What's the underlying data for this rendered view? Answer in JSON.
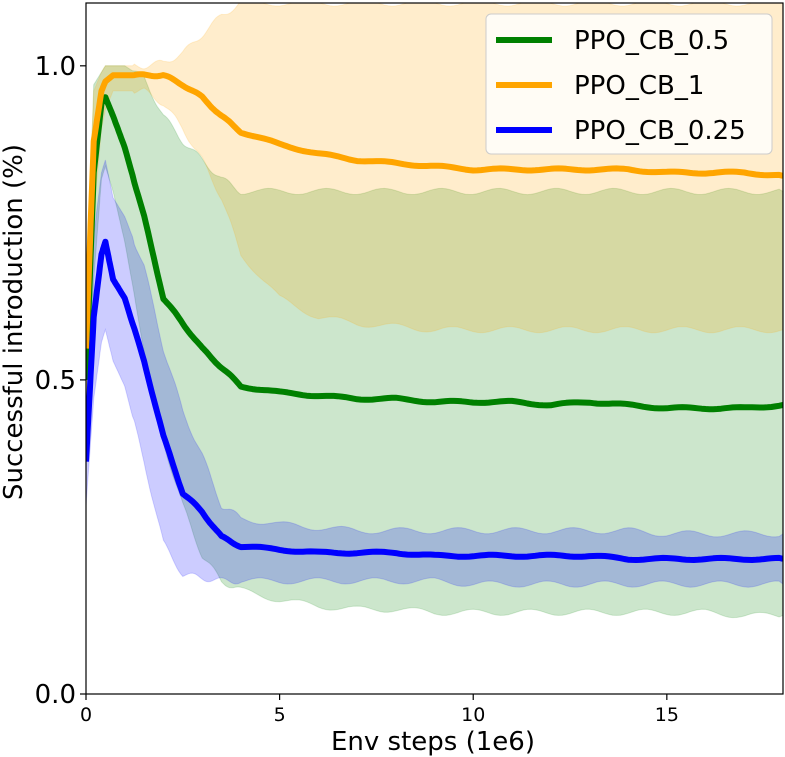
{
  "chart_data": {
    "type": "line",
    "title": "",
    "xlabel": "Env steps (1e6)",
    "ylabel": "Successful introduction (%)",
    "xlim": [
      0,
      18
    ],
    "ylim": [
      0,
      1.1
    ],
    "x_ticks": [
      {
        "value": 0,
        "label": "0"
      },
      {
        "value": 5,
        "label": "5"
      },
      {
        "value": 10,
        "label": "10"
      },
      {
        "value": 15,
        "label": "15"
      }
    ],
    "y_ticks": [
      {
        "value": 0.0,
        "label": "0.0"
      },
      {
        "value": 0.5,
        "label": "0.5"
      },
      {
        "value": 1.0,
        "label": "1.0"
      }
    ],
    "legend_position": "top-right",
    "x": [
      0,
      0.2,
      0.4,
      0.5,
      0.7,
      1.0,
      1.5,
      2.0,
      2.5,
      3.0,
      3.5,
      4.0,
      5.0,
      6.0,
      7.0,
      8.0,
      9.0,
      10.0,
      11.0,
      12.0,
      13.0,
      14.0,
      15.0,
      16.0,
      17.0,
      18.0
    ],
    "series": [
      {
        "name": "PPO_CB_0.5",
        "color": "#008000",
        "values": [
          0.5,
          0.83,
          0.94,
          0.95,
          0.92,
          0.87,
          0.76,
          0.63,
          0.59,
          0.55,
          0.52,
          0.49,
          0.48,
          0.475,
          0.47,
          0.47,
          0.465,
          0.465,
          0.465,
          0.46,
          0.465,
          0.46,
          0.455,
          0.455,
          0.455,
          0.46
        ],
        "lower": [
          0.4,
          0.66,
          0.82,
          0.84,
          0.8,
          0.72,
          0.55,
          0.4,
          0.3,
          0.22,
          0.18,
          0.165,
          0.15,
          0.14,
          0.135,
          0.135,
          0.13,
          0.13,
          0.13,
          0.13,
          0.13,
          0.13,
          0.13,
          0.13,
          0.125,
          0.125
        ],
        "upper": [
          0.6,
          0.97,
          0.99,
          1.0,
          1.0,
          1.0,
          0.98,
          0.92,
          0.88,
          0.85,
          0.82,
          0.8,
          0.8,
          0.8,
          0.8,
          0.8,
          0.8,
          0.8,
          0.8,
          0.8,
          0.8,
          0.8,
          0.8,
          0.8,
          0.8,
          0.8
        ]
      },
      {
        "name": "PPO_CB_1",
        "color": "#ffa500",
        "values": [
          0.55,
          0.88,
          0.96,
          0.975,
          0.985,
          0.985,
          0.985,
          0.985,
          0.97,
          0.95,
          0.92,
          0.895,
          0.875,
          0.86,
          0.85,
          0.845,
          0.84,
          0.835,
          0.835,
          0.835,
          0.835,
          0.835,
          0.83,
          0.83,
          0.83,
          0.825
        ],
        "lower": [
          0.45,
          0.76,
          0.9,
          0.93,
          0.96,
          0.96,
          0.96,
          0.94,
          0.9,
          0.85,
          0.79,
          0.7,
          0.63,
          0.6,
          0.59,
          0.585,
          0.58,
          0.58,
          0.58,
          0.58,
          0.58,
          0.58,
          0.58,
          0.58,
          0.58,
          0.58
        ],
        "upper": [
          0.65,
          0.96,
          0.99,
          1.0,
          1.0,
          1.0,
          1.0,
          1.005,
          1.02,
          1.05,
          1.08,
          1.1,
          1.1,
          1.1,
          1.1,
          1.1,
          1.1,
          1.1,
          1.1,
          1.1,
          1.1,
          1.1,
          1.1,
          1.1,
          1.1,
          1.1
        ]
      },
      {
        "name": "PPO_CB_0.25",
        "color": "#0000ff",
        "values": [
          0.37,
          0.6,
          0.7,
          0.72,
          0.66,
          0.63,
          0.53,
          0.41,
          0.32,
          0.29,
          0.25,
          0.235,
          0.23,
          0.225,
          0.225,
          0.225,
          0.22,
          0.22,
          0.22,
          0.22,
          0.22,
          0.215,
          0.215,
          0.215,
          0.215,
          0.215
        ],
        "lower": [
          0.3,
          0.47,
          0.56,
          0.58,
          0.53,
          0.49,
          0.37,
          0.24,
          0.19,
          0.185,
          0.18,
          0.18,
          0.18,
          0.18,
          0.18,
          0.18,
          0.18,
          0.175,
          0.175,
          0.175,
          0.175,
          0.175,
          0.175,
          0.175,
          0.175,
          0.175
        ],
        "upper": [
          0.44,
          0.73,
          0.83,
          0.85,
          0.79,
          0.76,
          0.68,
          0.55,
          0.45,
          0.38,
          0.3,
          0.28,
          0.27,
          0.265,
          0.26,
          0.26,
          0.26,
          0.26,
          0.26,
          0.26,
          0.26,
          0.26,
          0.255,
          0.255,
          0.255,
          0.255
        ]
      }
    ],
    "legend_order": [
      "PPO_CB_0.5",
      "PPO_CB_1",
      "PPO_CB_0.25"
    ]
  }
}
